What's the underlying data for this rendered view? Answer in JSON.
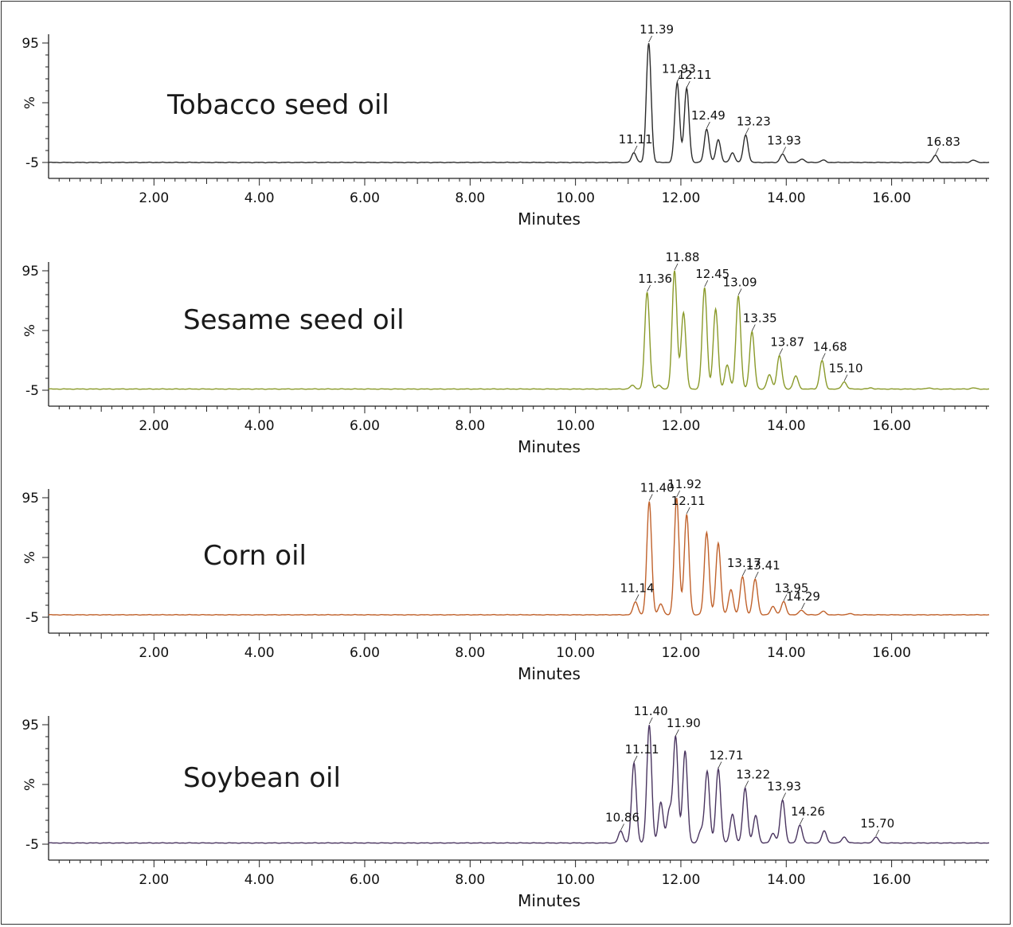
{
  "chart_data": [
    {
      "type": "line",
      "title": "Tobacco seed oil",
      "xlabel": "Minutes",
      "ylabel": "%",
      "xlim": [
        0,
        17.85
      ],
      "ylim": [
        -5,
        95
      ],
      "yticks": [
        "95",
        "%",
        "-5"
      ],
      "xticks": [
        "2.00",
        "4.00",
        "6.00",
        "8.00",
        "10.00",
        "12.00",
        "14.00",
        "16.00"
      ],
      "color": "#2b2b2b",
      "baseline": -5,
      "peaks": [
        {
          "rt": 11.11,
          "h": 3,
          "label": "11.11"
        },
        {
          "rt": 11.39,
          "h": 95,
          "label": "11.39"
        },
        {
          "rt": 11.93,
          "h": 62,
          "label": "11.93"
        },
        {
          "rt": 12.11,
          "h": 57,
          "label": "12.11"
        },
        {
          "rt": 12.49,
          "h": 23,
          "label": "12.49"
        },
        {
          "rt": 12.71,
          "h": 14,
          "label": ""
        },
        {
          "rt": 12.98,
          "h": 3,
          "label": ""
        },
        {
          "rt": 13.23,
          "h": 18,
          "label": "13.23"
        },
        {
          "rt": 13.93,
          "h": 2,
          "label": "13.93"
        },
        {
          "rt": 14.3,
          "h": -2,
          "label": ""
        },
        {
          "rt": 14.7,
          "h": -3,
          "label": ""
        },
        {
          "rt": 16.83,
          "h": 1,
          "label": "16.83"
        },
        {
          "rt": 17.55,
          "h": -3,
          "label": ""
        }
      ]
    },
    {
      "type": "line",
      "title": "Sesame seed oil",
      "xlabel": "Minutes",
      "ylabel": "%",
      "xlim": [
        0,
        17.85
      ],
      "ylim": [
        -5,
        95
      ],
      "yticks": [
        "95",
        "%",
        "-5"
      ],
      "xticks": [
        "2.00",
        "4.00",
        "6.00",
        "8.00",
        "10.00",
        "12.00",
        "14.00",
        "16.00"
      ],
      "color": "#8a9a2a",
      "baseline": -4,
      "peaks": [
        {
          "rt": 11.08,
          "h": -1,
          "label": ""
        },
        {
          "rt": 11.36,
          "h": 77,
          "label": "11.36"
        },
        {
          "rt": 11.58,
          "h": -1,
          "label": ""
        },
        {
          "rt": 11.88,
          "h": 95,
          "label": "11.88"
        },
        {
          "rt": 12.05,
          "h": 60,
          "label": ""
        },
        {
          "rt": 12.45,
          "h": 81,
          "label": "12.45"
        },
        {
          "rt": 12.66,
          "h": 63,
          "label": ""
        },
        {
          "rt": 12.88,
          "h": 16,
          "label": ""
        },
        {
          "rt": 13.09,
          "h": 74,
          "label": "13.09"
        },
        {
          "rt": 13.35,
          "h": 44,
          "label": "13.35"
        },
        {
          "rt": 13.68,
          "h": 8,
          "label": ""
        },
        {
          "rt": 13.87,
          "h": 24,
          "label": "13.87"
        },
        {
          "rt": 14.18,
          "h": 7,
          "label": ""
        },
        {
          "rt": 14.68,
          "h": 20,
          "label": "14.68"
        },
        {
          "rt": 15.1,
          "h": 2,
          "label": "15.10"
        },
        {
          "rt": 15.6,
          "h": -3,
          "label": ""
        },
        {
          "rt": 16.7,
          "h": -3,
          "label": ""
        },
        {
          "rt": 17.55,
          "h": -3,
          "label": ""
        }
      ]
    },
    {
      "type": "line",
      "title": "Corn oil",
      "xlabel": "Minutes",
      "ylabel": "%",
      "xlim": [
        0,
        17.85
      ],
      "ylim": [
        -5,
        95
      ],
      "yticks": [
        "95",
        "%",
        "-5"
      ],
      "xticks": [
        "2.00",
        "4.00",
        "6.00",
        "8.00",
        "10.00",
        "12.00",
        "14.00",
        "16.00"
      ],
      "color": "#c0622c",
      "baseline": -3,
      "peaks": [
        {
          "rt": 11.14,
          "h": 8,
          "label": "11.14"
        },
        {
          "rt": 11.4,
          "h": 92,
          "label": "11.40"
        },
        {
          "rt": 11.62,
          "h": 6,
          "label": ""
        },
        {
          "rt": 11.92,
          "h": 95,
          "label": "11.92"
        },
        {
          "rt": 12.11,
          "h": 81,
          "label": "12.11"
        },
        {
          "rt": 12.49,
          "h": 66,
          "label": ""
        },
        {
          "rt": 12.71,
          "h": 57,
          "label": ""
        },
        {
          "rt": 12.95,
          "h": 18,
          "label": ""
        },
        {
          "rt": 13.17,
          "h": 29,
          "label": "13.17"
        },
        {
          "rt": 13.41,
          "h": 27,
          "label": "13.41"
        },
        {
          "rt": 13.75,
          "h": 4,
          "label": ""
        },
        {
          "rt": 13.95,
          "h": 8,
          "label": "13.95"
        },
        {
          "rt": 14.29,
          "h": 1,
          "label": "14.29"
        },
        {
          "rt": 14.7,
          "h": 0,
          "label": ""
        },
        {
          "rt": 15.2,
          "h": -2,
          "label": ""
        }
      ]
    },
    {
      "type": "line",
      "title": "Soybean oil",
      "xlabel": "Minutes",
      "ylabel": "%",
      "xlim": [
        0,
        17.85
      ],
      "ylim": [
        -5,
        95
      ],
      "yticks": [
        "95",
        "%",
        "-5"
      ],
      "xticks": [
        "2.00",
        "4.00",
        "6.00",
        "8.00",
        "10.00",
        "12.00",
        "14.00",
        "16.00"
      ],
      "color": "#4a3560",
      "baseline": -4,
      "peaks": [
        {
          "rt": 10.86,
          "h": 6,
          "label": "10.86"
        },
        {
          "rt": 11.11,
          "h": 63,
          "label": "11.11"
        },
        {
          "rt": 11.4,
          "h": 95,
          "label": "11.40"
        },
        {
          "rt": 11.62,
          "h": 30,
          "label": ""
        },
        {
          "rt": 11.78,
          "h": 23,
          "label": ""
        },
        {
          "rt": 11.9,
          "h": 85,
          "label": "11.90"
        },
        {
          "rt": 12.08,
          "h": 73,
          "label": ""
        },
        {
          "rt": 12.38,
          "h": 6,
          "label": ""
        },
        {
          "rt": 12.5,
          "h": 56,
          "label": ""
        },
        {
          "rt": 12.71,
          "h": 58,
          "label": "12.71"
        },
        {
          "rt": 12.98,
          "h": 20,
          "label": ""
        },
        {
          "rt": 13.22,
          "h": 42,
          "label": "13.22"
        },
        {
          "rt": 13.42,
          "h": 19,
          "label": ""
        },
        {
          "rt": 13.75,
          "h": 4,
          "label": ""
        },
        {
          "rt": 13.93,
          "h": 32,
          "label": "13.93"
        },
        {
          "rt": 14.26,
          "h": 11,
          "label": "14.26"
        },
        {
          "rt": 14.72,
          "h": 6,
          "label": ""
        },
        {
          "rt": 15.1,
          "h": 1,
          "label": ""
        },
        {
          "rt": 15.7,
          "h": 1,
          "label": "15.70"
        }
      ]
    }
  ]
}
